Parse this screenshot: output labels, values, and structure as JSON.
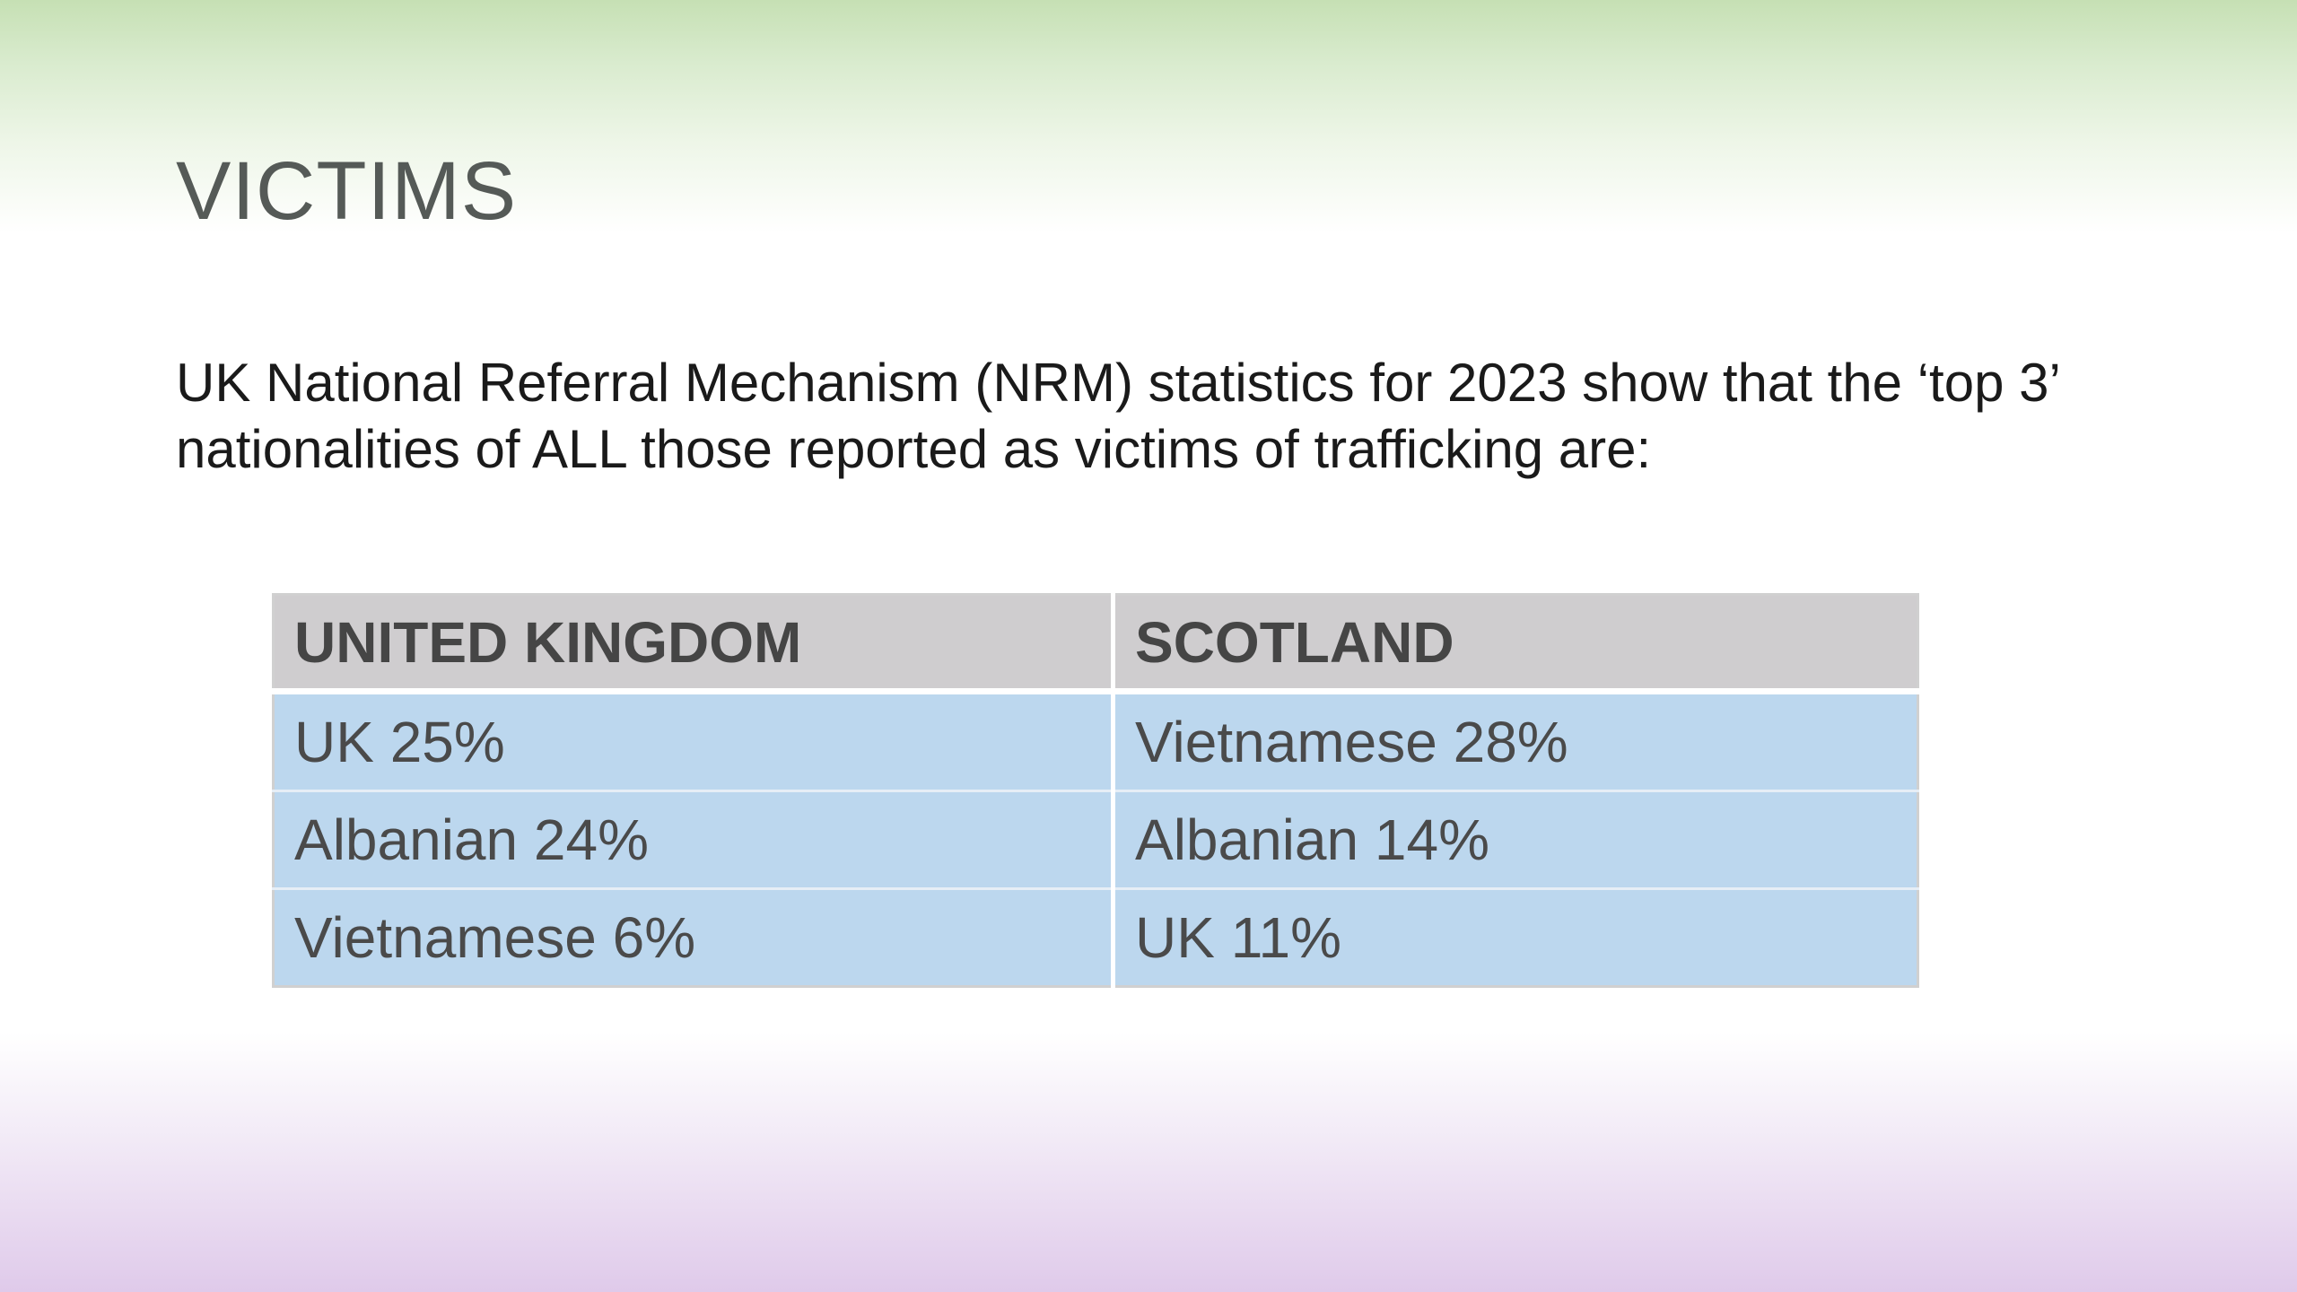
{
  "slide": {
    "title": "VICTIMS",
    "intro_line1": "UK National Referral Mechanism (NRM) statistics for 2023 show that the ‘top 3’",
    "intro_line2": "nationalities of ALL those reported as victims of trafficking are:"
  },
  "table": {
    "headers": [
      "UNITED KINGDOM",
      "SCOTLAND"
    ],
    "rows": [
      [
        "UK 25%",
        "Vietnamese 28%"
      ],
      [
        "Albanian 24%",
        "Albanian 14%"
      ],
      [
        "Vietnamese 6%",
        "UK 11%"
      ]
    ]
  },
  "colors": {
    "header_bg": "#cfcdcf",
    "cell_bg": "#bcd7ee",
    "title_color": "#555a57",
    "top_gradient": "#c6e0b4",
    "bottom_gradient": "#dfcaea"
  }
}
